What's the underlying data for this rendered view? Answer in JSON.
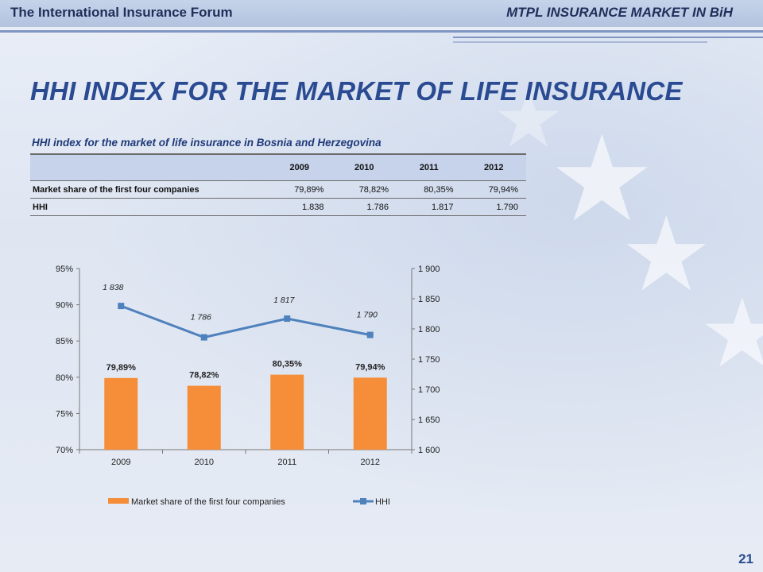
{
  "header": {
    "left_title": "The International Insurance Forum",
    "right_title": "MTPL INSURANCE MARKET IN BiH"
  },
  "slide": {
    "title": "HHI INDEX FOR THE MARKET OF LIFE INSURANCE",
    "subtitle": "HHI index for the market of life insurance  in Bosnia  and Herzegovina",
    "page_number": "21"
  },
  "table": {
    "columns": [
      "",
      "2009",
      "2010",
      "2011",
      "2012"
    ],
    "rows": [
      {
        "label": "Market share of the first four companies",
        "values": [
          "79,89%",
          "78,82%",
          "80,35%",
          "79,94%"
        ]
      },
      {
        "label": "HHI",
        "values": [
          "1.838",
          "1.786",
          "1.817",
          "1.790"
        ]
      }
    ]
  },
  "colors": {
    "bar": "#f68d38",
    "line": "#4f81bd",
    "title": "#2a4a92",
    "table_header": "#c6d3ea"
  },
  "chart_data": {
    "type": "bar",
    "categories": [
      "2009",
      "2010",
      "2011",
      "2012"
    ],
    "series": [
      {
        "name": "Market share of the first four companies",
        "kind": "bar",
        "axis": "left",
        "values": [
          79.89,
          78.82,
          80.35,
          79.94
        ],
        "labels": [
          "79,89%",
          "78,82%",
          "80,35%",
          "79,94%"
        ]
      },
      {
        "name": "HHI",
        "kind": "line",
        "axis": "right",
        "values": [
          1838,
          1786,
          1817,
          1790
        ],
        "labels": [
          "1 838",
          "1 786",
          "1 817",
          "1 790"
        ]
      }
    ],
    "left_axis": {
      "ylim": [
        70,
        95
      ],
      "ticks": [
        70,
        75,
        80,
        85,
        90,
        95
      ],
      "tick_labels": [
        "70%",
        "75%",
        "80%",
        "85%",
        "90%",
        "95%"
      ]
    },
    "right_axis": {
      "ylim": [
        1600,
        1900
      ],
      "ticks": [
        1600,
        1650,
        1700,
        1750,
        1800,
        1850,
        1900
      ],
      "tick_labels": [
        "1 600",
        "1 650",
        "1 700",
        "1 750",
        "1 800",
        "1 850",
        "1 900"
      ]
    },
    "legend": "bottom",
    "grid": false
  }
}
